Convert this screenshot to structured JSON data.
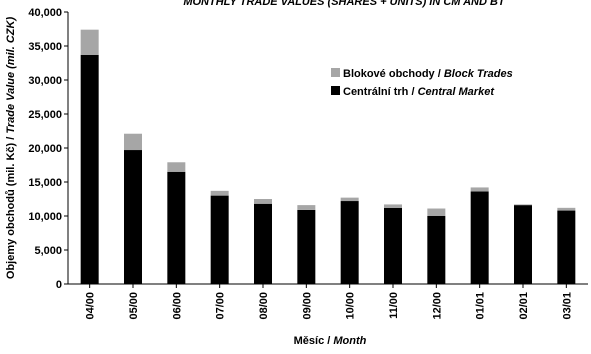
{
  "chart_data": {
    "type": "bar",
    "stacked": true,
    "title": "MONTHLY TRADE VALUES (SHARES + UNITS) IN CM AND BT",
    "xlabel": {
      "cz": "Měsíc / ",
      "en": "Month"
    },
    "ylabel": {
      "cz": "Objemy obchodů (mil. Kč) / ",
      "en": "Trade Value (mil. CZK)"
    },
    "ylim": [
      0,
      40000
    ],
    "yticks": [
      "0",
      "5,000",
      "10,000",
      "15,000",
      "20,000",
      "25,000",
      "30,000",
      "35,000",
      "40,000"
    ],
    "categories": [
      "04/00",
      "05/00",
      "06/00",
      "07/00",
      "08/00",
      "09/00",
      "10/00",
      "11/00",
      "12/00",
      "01/01",
      "02/01",
      "03/01"
    ],
    "series": [
      {
        "name_cz": "Centrální trh / ",
        "name_en": "Central Market",
        "color": "#000000",
        "values": [
          33700,
          19700,
          16500,
          13000,
          11800,
          10900,
          12200,
          11200,
          10000,
          13600,
          11600,
          10800
        ]
      },
      {
        "name_cz": "Blokové obchody / ",
        "name_en": "Block Trades",
        "color": "#a6a6a6",
        "values": [
          3700,
          2400,
          1400,
          700,
          700,
          700,
          500,
          500,
          1100,
          600,
          100,
          400
        ]
      }
    ],
    "grid": false,
    "legend_position": "upper-right"
  }
}
